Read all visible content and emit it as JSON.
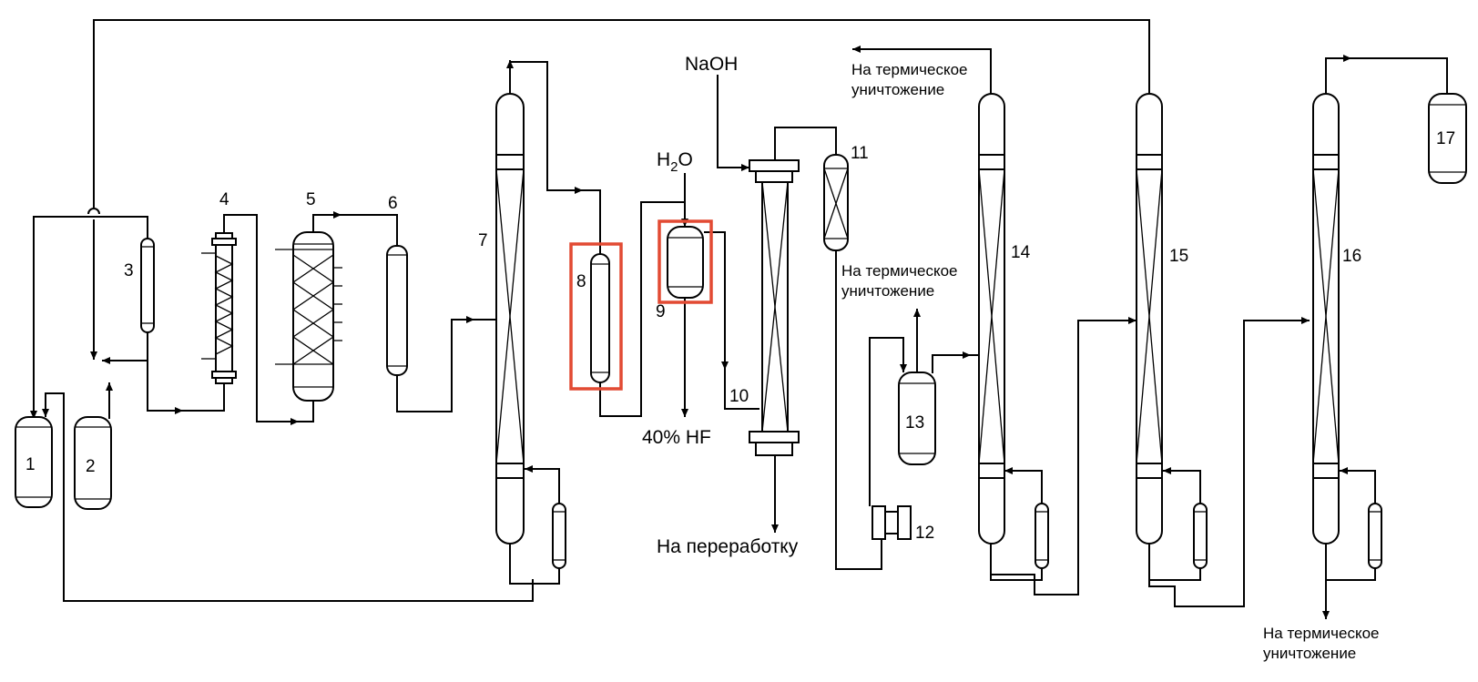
{
  "colors": {
    "line": "#000000",
    "highlight": "#e24a33",
    "background": "#ffffff"
  },
  "equipment": {
    "e1": "1",
    "e2": "2",
    "e3": "3",
    "e4": "4",
    "e5": "5",
    "e6": "6",
    "e7": "7",
    "e8": "8",
    "e9": "9",
    "e10": "10",
    "e11": "11",
    "e12": "12",
    "e13": "13",
    "e14": "14",
    "e15": "15",
    "e16": "16",
    "e17": "17"
  },
  "streams": {
    "naoh": "NaOH",
    "h2o_main": "H",
    "h2o_sub": "2",
    "h2o_end": "O",
    "hf": "40% HF",
    "recycle": "На переработку",
    "thermal_1": "На термическое",
    "thermal_2": "уничтожение"
  },
  "highlighted": [
    "8",
    "9"
  ]
}
